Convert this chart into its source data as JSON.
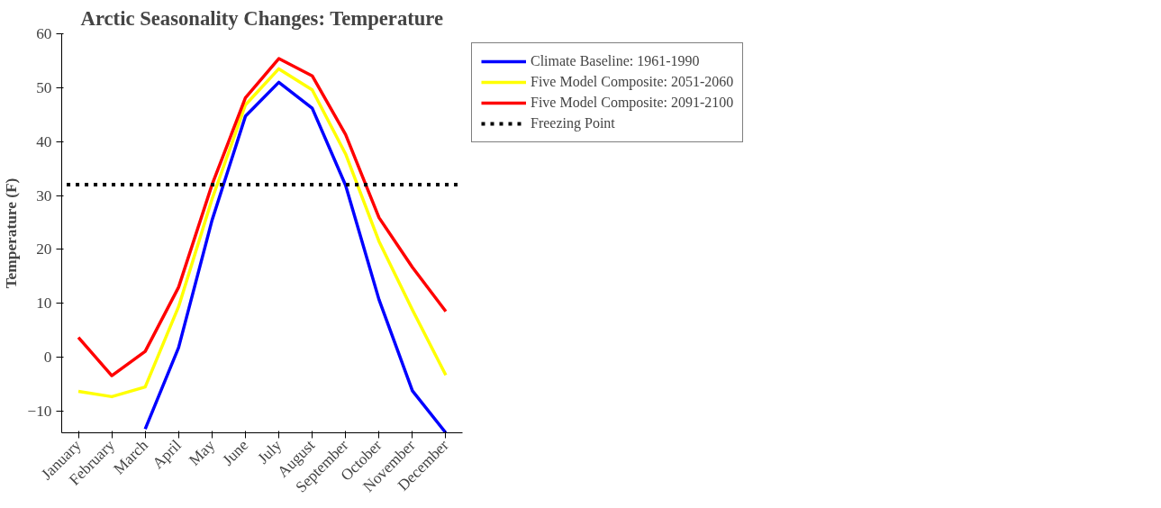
{
  "chart_data": {
    "type": "line",
    "title": "Arctic Seasonality Changes: Temperature",
    "ylabel": "Temperature (F)",
    "categories": [
      "January",
      "February",
      "March",
      "April",
      "May",
      "June",
      "July",
      "August",
      "September",
      "October",
      "November",
      "December"
    ],
    "series": [
      {
        "name": "Climate Baseline: 1961-1990",
        "color": "#0000ff",
        "values": [
          null,
          null,
          -13.3,
          1.8,
          25.4,
          44.7,
          51,
          46.2,
          31.9,
          10.7,
          -6.2,
          -14
        ]
      },
      {
        "name": "Five Model Composite: 2051-2060",
        "color": "#ffff00",
        "values": [
          -6.3,
          -7.3,
          -5.5,
          9.4,
          29.3,
          46.8,
          53.5,
          49.6,
          37.7,
          21.5,
          8.8,
          -3.3
        ]
      },
      {
        "name": "Five Model Composite: 2091-2100",
        "color": "#ff0000",
        "values": [
          3.7,
          -3.4,
          1.1,
          13,
          32,
          48.1,
          55.4,
          52.2,
          41.3,
          25.9,
          16.7,
          8.5
        ]
      }
    ],
    "ref_lines": [
      {
        "axis": "y",
        "value": 32,
        "label": "Freezing Point",
        "color": "#000000",
        "line_style": "dotted"
      }
    ],
    "ylim": [
      -14,
      60
    ],
    "yticks": [
      -10,
      0,
      10,
      20,
      30,
      40,
      50,
      60
    ],
    "grid": false,
    "legend": "top right",
    "marker": "none",
    "line_style": "solid"
  }
}
